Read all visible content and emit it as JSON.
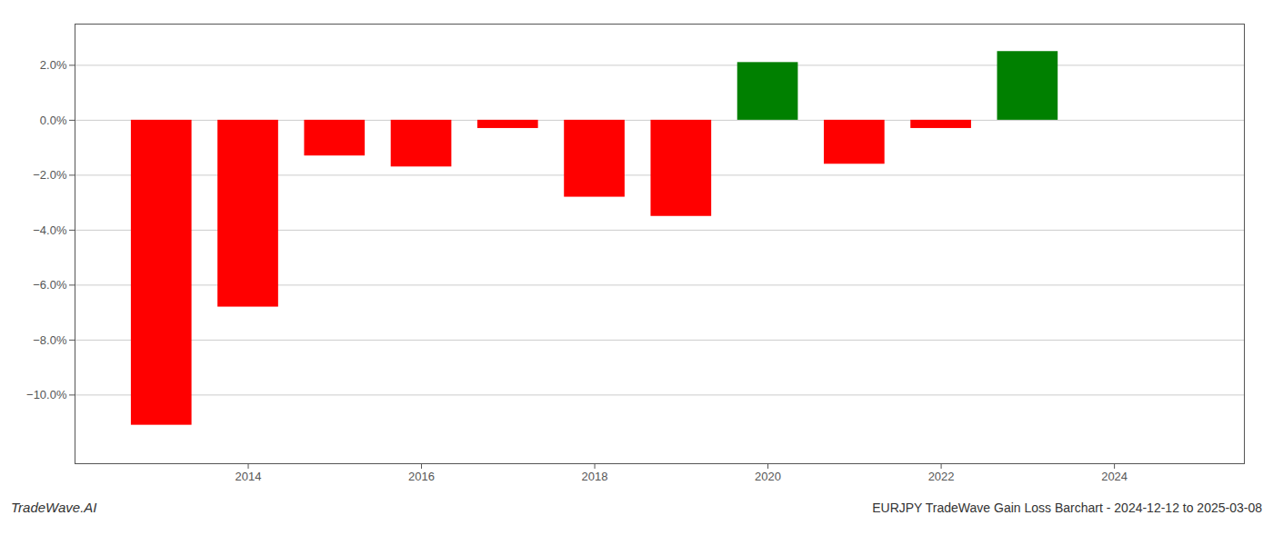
{
  "chart_data": {
    "type": "bar",
    "title": "EURJPY TradeWave Gain Loss Barchart - 2024-12-12 to 2025-03-08",
    "annotations": [
      "TradeWave.AI"
    ],
    "x": [
      2013,
      2014,
      2015,
      2016,
      2017,
      2018,
      2019,
      2020,
      2021,
      2022,
      2023
    ],
    "values": [
      -0.111,
      -0.068,
      -0.013,
      -0.017,
      -0.003,
      -0.028,
      -0.035,
      0.021,
      -0.016,
      -0.003,
      0.025
    ],
    "colors": [
      "#ff0000",
      "#ff0000",
      "#ff0000",
      "#ff0000",
      "#ff0000",
      "#ff0000",
      "#ff0000",
      "#008000",
      "#ff0000",
      "#ff0000",
      "#008000"
    ],
    "xlim": [
      2012.0,
      2025.5
    ],
    "ylim": [
      -0.125,
      0.035
    ],
    "xticks": [
      2014,
      2016,
      2018,
      2020,
      2022,
      2024
    ],
    "yticks": [
      {
        "value": -0.1,
        "label": "−10.0%"
      },
      {
        "value": -0.08,
        "label": "−8.0%"
      },
      {
        "value": -0.06,
        "label": "−6.0%"
      },
      {
        "value": -0.04,
        "label": "−4.0%"
      },
      {
        "value": -0.02,
        "label": "−2.0%"
      },
      {
        "value": 0.0,
        "label": "0.0%"
      },
      {
        "value": 0.02,
        "label": "2.0%"
      }
    ],
    "grid": true
  }
}
